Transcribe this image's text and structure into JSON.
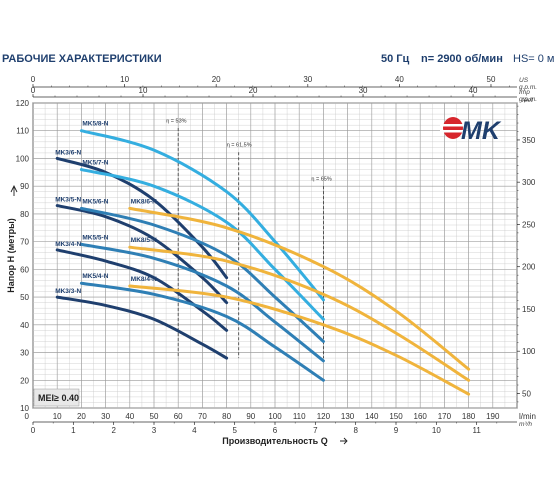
{
  "header": {
    "title": "РАБОЧИЕ ХАРАКТЕРИСТИКИ",
    "freq": "50 Гц",
    "speed": "n= 2900 об/мин",
    "hs": "HS= 0 м"
  },
  "logo": {
    "text": "MK"
  },
  "mei": "MEI≥ 0.40",
  "colors": {
    "dark": "#1f3f6e",
    "mid": "#2f7fb5",
    "light": "#34aee0",
    "orange": "#f0b43c",
    "grid": "#c8c8c8"
  },
  "chart_data": {
    "type": "line",
    "xlabel": "Производительность Q",
    "ylabel": "Напор Н (метры)",
    "xlim": [
      0,
      200
    ],
    "ylim": [
      10,
      120
    ],
    "x_unit": "l/min",
    "x_ticks": [
      10,
      20,
      30,
      40,
      50,
      60,
      70,
      80,
      90,
      100,
      110,
      120,
      130,
      140,
      150,
      160,
      170,
      180,
      190
    ],
    "y_ticks": [
      10,
      20,
      30,
      40,
      50,
      60,
      70,
      80,
      90,
      100,
      110,
      120
    ],
    "top_axis_1": {
      "unit1": "US",
      "unit2": "g.p.m.",
      "ticks": [
        0,
        10,
        20,
        30,
        40,
        50
      ]
    },
    "top_axis_2": {
      "unit1": "Imp",
      "unit2": "g.p.m.",
      "ticks": [
        0,
        10,
        20,
        30,
        40
      ]
    },
    "bottom_axis_2": {
      "unit": "m³/h",
      "ticks": [
        0,
        1,
        2,
        3,
        4,
        5,
        6,
        7,
        8,
        9,
        10,
        11
      ]
    },
    "right_axis": {
      "unit": "feet",
      "ticks": [
        50,
        100,
        150,
        200,
        250,
        300,
        350
      ]
    },
    "efficiency": [
      {
        "label": "η = 53%",
        "x": 60
      },
      {
        "label": "η = 61,5%",
        "x": 85
      },
      {
        "label": "η = 65%",
        "x": 120
      }
    ],
    "series": [
      {
        "name": "MK3/3-N",
        "color": "dark",
        "x": [
          10,
          30,
          50,
          70,
          80
        ],
        "y": [
          50,
          47,
          42,
          33,
          28
        ]
      },
      {
        "name": "MK3/4-N",
        "color": "dark",
        "x": [
          10,
          30,
          50,
          70,
          80
        ],
        "y": [
          67,
          63,
          57,
          45,
          38
        ]
      },
      {
        "name": "MK3/5-N",
        "color": "dark",
        "x": [
          10,
          30,
          50,
          70,
          80
        ],
        "y": [
          83,
          79,
          71,
          57,
          48
        ]
      },
      {
        "name": "MK3/6-N",
        "color": "dark",
        "x": [
          10,
          30,
          50,
          70,
          80
        ],
        "y": [
          100,
          95,
          85,
          68,
          57
        ]
      },
      {
        "name": "MK5/4-N",
        "color": "mid",
        "x": [
          20,
          50,
          80,
          100,
          120
        ],
        "y": [
          55,
          51,
          43,
          32,
          20
        ]
      },
      {
        "name": "MK5/5-N",
        "color": "mid",
        "x": [
          20,
          50,
          80,
          100,
          120
        ],
        "y": [
          69,
          64,
          54,
          41,
          27
        ]
      },
      {
        "name": "MK5/6-N",
        "color": "mid",
        "x": [
          20,
          50,
          80,
          100,
          120
        ],
        "y": [
          82,
          76,
          65,
          50,
          34
        ]
      },
      {
        "name": "MK5/7-N",
        "color": "light",
        "x": [
          20,
          50,
          80,
          100,
          120
        ],
        "y": [
          96,
          90,
          77,
          60,
          42
        ]
      },
      {
        "name": "MK5/8-N",
        "color": "light",
        "x": [
          20,
          50,
          80,
          100,
          120
        ],
        "y": [
          110,
          103,
          88,
          70,
          49
        ]
      },
      {
        "name": "MK8/4-N",
        "color": "orange",
        "x": [
          40,
          80,
          120,
          150,
          180
        ],
        "y": [
          54,
          50,
          40,
          29,
          15
        ]
      },
      {
        "name": "MK8/5-N",
        "color": "orange",
        "x": [
          40,
          80,
          120,
          150,
          180
        ],
        "y": [
          68,
          63,
          51,
          37,
          20
        ]
      },
      {
        "name": "MK8/6-N",
        "color": "orange",
        "x": [
          40,
          80,
          120,
          150,
          180
        ],
        "y": [
          82,
          75,
          61,
          45,
          24
        ]
      }
    ],
    "label_positions_note": ""
  }
}
